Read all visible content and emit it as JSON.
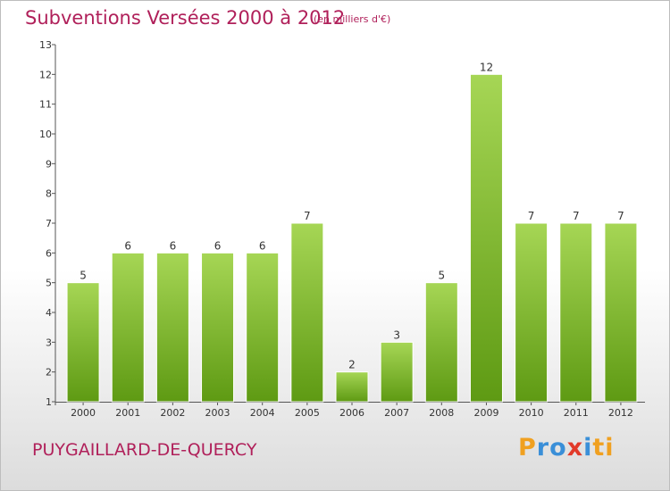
{
  "title": "Subventions Versées 2000 à 2012",
  "subtitle": "(en milliers d'€)",
  "place_name": "PUYGAILLARD-DE-QUERCY",
  "logo_text": "Proxiti",
  "colors": {
    "title": "#b0205a",
    "bar_top": "#a6d655",
    "bar_bottom": "#5e9a13"
  },
  "chart_data": {
    "type": "bar",
    "categories": [
      "2000",
      "2001",
      "2002",
      "2003",
      "2004",
      "2005",
      "2006",
      "2007",
      "2008",
      "2009",
      "2010",
      "2011",
      "2012"
    ],
    "values": [
      5,
      6,
      6,
      6,
      6,
      7,
      2,
      3,
      5,
      12,
      7,
      7,
      7
    ],
    "title": "Subventions Versées 2000 à 2012",
    "xlabel": "",
    "ylabel": "",
    "ylim": [
      1,
      13
    ],
    "yticks": [
      1,
      2,
      3,
      4,
      5,
      6,
      7,
      8,
      9,
      10,
      11,
      12,
      13
    ],
    "grid": false,
    "data_labels": true
  }
}
